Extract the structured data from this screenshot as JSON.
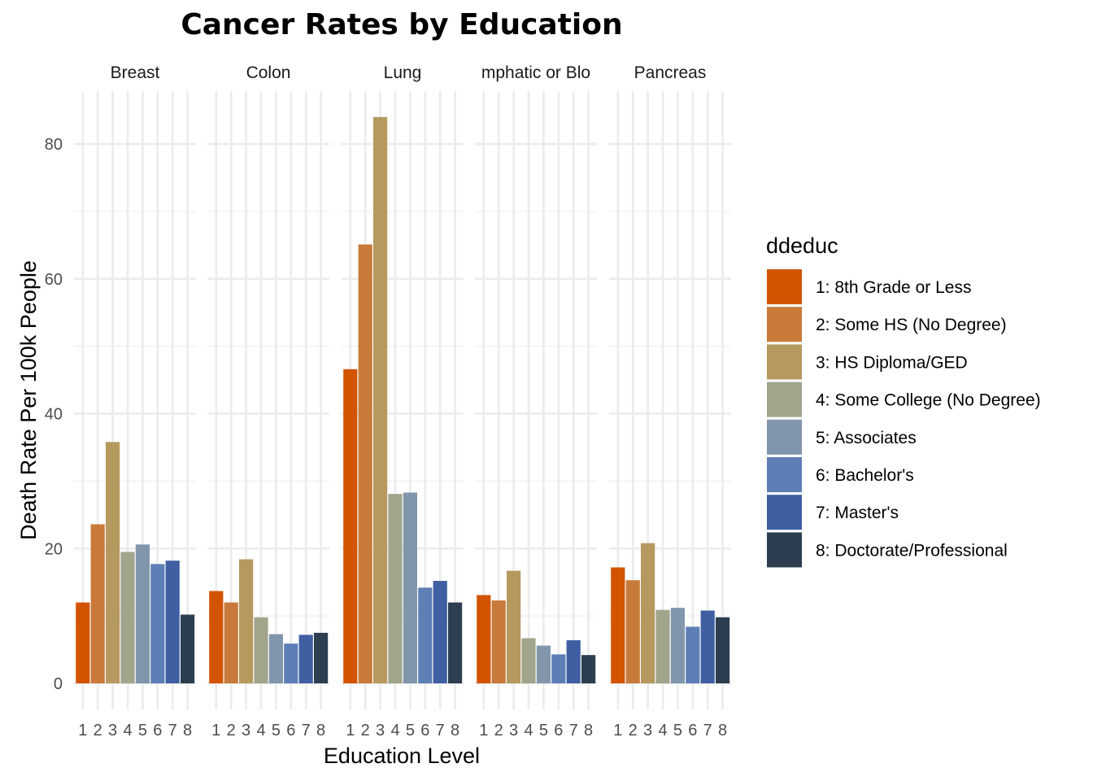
{
  "chart_data": {
    "type": "bar",
    "title": "Cancer Rates by Education",
    "xlabel": "Education Level",
    "ylabel": "Death Rate Per 100k People",
    "ylim": [
      0,
      88
    ],
    "yticks": [
      0,
      20,
      40,
      60,
      80
    ],
    "grid": true,
    "legend_position": "right",
    "legend_title": "ddeduc",
    "categories": [
      "1",
      "2",
      "3",
      "4",
      "5",
      "6",
      "7",
      "8"
    ],
    "category_labels": [
      "1: 8th Grade or Less",
      "2: Some HS (No Degree)",
      "3: HS Diploma/GED",
      "4: Some College (No Degree)",
      "5: Associates",
      "6: Bachelor's",
      "7: Master's",
      "8: Doctorate/Professional"
    ],
    "colors": [
      "#D35400",
      "#C87A3A",
      "#B5995E",
      "#A0A58C",
      "#8196AB",
      "#5D7FB6",
      "#3F5FA2",
      "#2C3E50"
    ],
    "facets": [
      {
        "name": "Breast",
        "values": [
          12.0,
          23.6,
          35.8,
          19.5,
          20.6,
          17.7,
          18.2,
          10.2
        ]
      },
      {
        "name": "Colon",
        "values": [
          13.7,
          12.0,
          18.4,
          9.8,
          7.3,
          5.9,
          7.2,
          7.5
        ]
      },
      {
        "name": "Lung",
        "values": [
          46.6,
          65.1,
          84.0,
          28.1,
          28.3,
          14.2,
          15.2,
          12.0
        ]
      },
      {
        "name": "mphatic or Blo",
        "values": [
          13.1,
          12.3,
          16.7,
          6.7,
          5.6,
          4.3,
          6.4,
          4.2
        ]
      },
      {
        "name": "Pancreas",
        "values": [
          17.2,
          15.3,
          20.8,
          10.9,
          11.2,
          8.4,
          10.8,
          9.8
        ]
      }
    ]
  }
}
